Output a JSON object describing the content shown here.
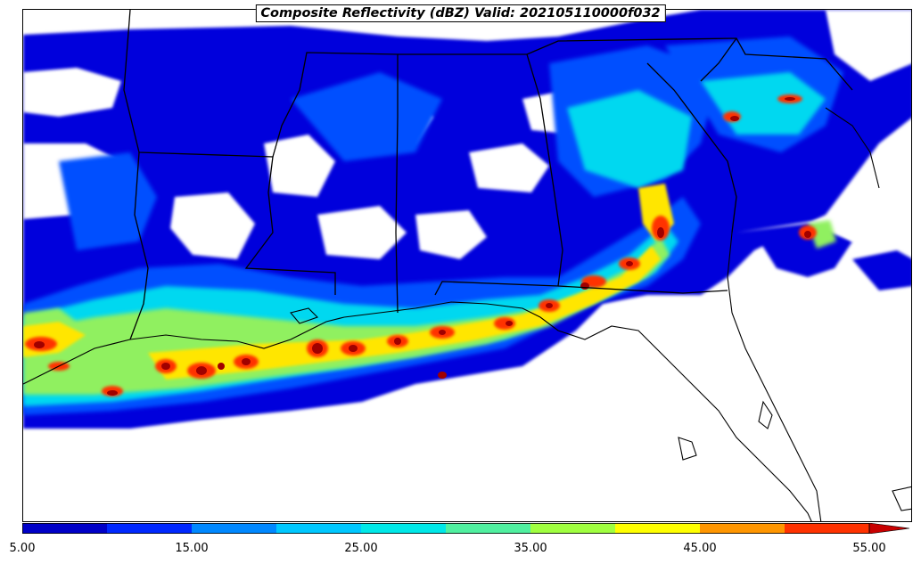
{
  "title": "Composite Reflectivity (dBZ) Valid: 202105110000f032",
  "colorbar": {
    "colors": [
      "#0000c8",
      "#0028ff",
      "#0088ff",
      "#00c8ff",
      "#00e8e8",
      "#50f0a0",
      "#a0ff40",
      "#ffff00",
      "#ff9600",
      "#ff3200",
      "#c80000",
      "#a00000"
    ],
    "tick_labels": [
      "5.00",
      "15.00",
      "25.00",
      "35.00",
      "45.00",
      "55.00"
    ],
    "extend": "max"
  }
}
